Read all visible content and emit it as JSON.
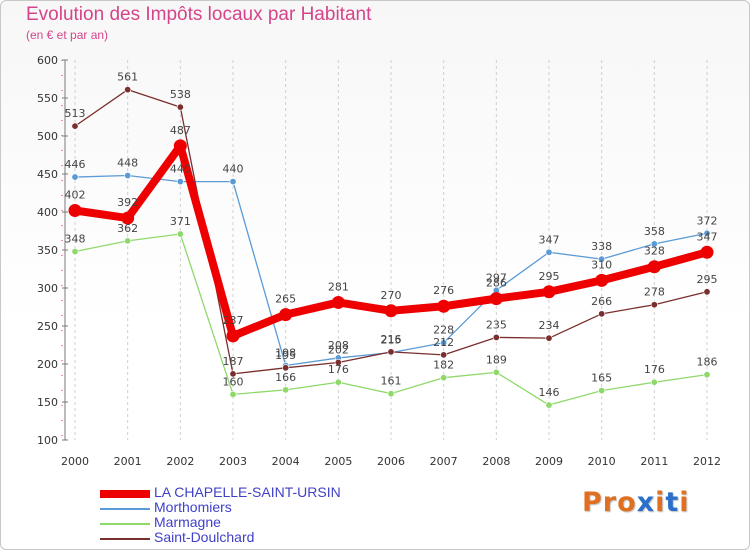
{
  "chart_data": {
    "type": "line",
    "title": "Evolution des Impôts locaux par Habitant",
    "subtitle": "(en € et par an)",
    "xlabel": "",
    "ylabel": "",
    "x": [
      "2000",
      "2001",
      "2002",
      "2003",
      "2004",
      "2005",
      "2006",
      "2007",
      "2008",
      "2009",
      "2010",
      "2011",
      "2012"
    ],
    "ylim": [
      100,
      600
    ],
    "yticks": [
      100,
      150,
      200,
      250,
      300,
      350,
      400,
      450,
      500,
      550,
      600
    ],
    "grid": "vertical dashed",
    "series": [
      {
        "name": "LA CHAPELLE-SAINT-URSIN",
        "color": "#ee0000",
        "values": [
          402,
          392,
          487,
          237,
          265,
          281,
          270,
          276,
          286,
          295,
          310,
          328,
          347
        ]
      },
      {
        "name": "Morthomiers",
        "color": "#5b9bd5",
        "values": [
          446,
          448,
          440,
          440,
          198,
          208,
          215,
          228,
          297,
          347,
          338,
          358,
          372
        ]
      },
      {
        "name": "Marmagne",
        "color": "#8fd96b",
        "values": [
          348,
          362,
          371,
          160,
          166,
          176,
          161,
          182,
          189,
          146,
          165,
          176,
          186
        ]
      },
      {
        "name": "Saint-Doulchard",
        "color": "#7a2e2e",
        "values": [
          513,
          561,
          538,
          187,
          195,
          202,
          216,
          212,
          235,
          234,
          266,
          278,
          295
        ]
      }
    ]
  },
  "legend": {
    "position": "bottom-left"
  },
  "logo": {
    "text": "Proxiti",
    "colors": [
      "#e07020",
      "#e07020",
      "#e07020",
      "#2a6fc9",
      "#e07020",
      "#2a6fc9",
      "#e07020"
    ]
  }
}
